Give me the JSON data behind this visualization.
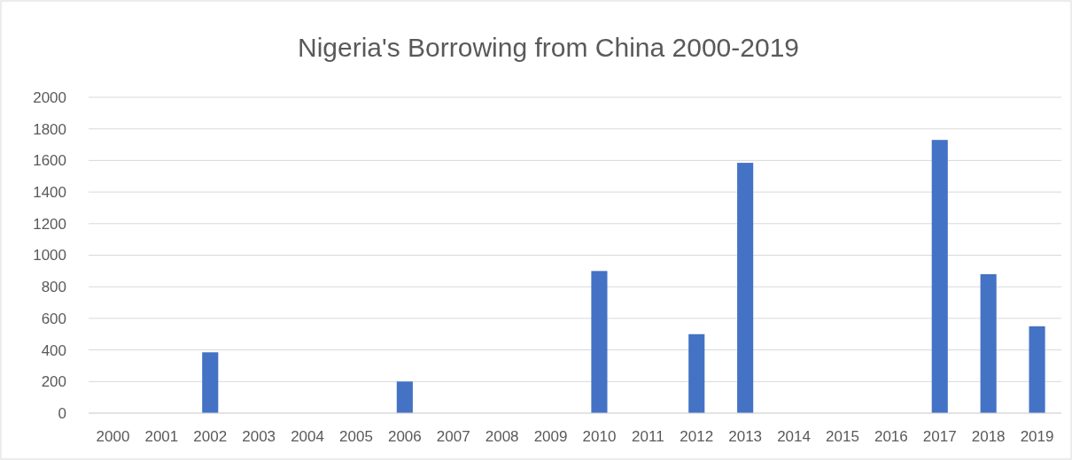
{
  "chart_data": {
    "type": "bar",
    "title": "Nigeria's Borrowing from China 2000-2019",
    "categories": [
      "2000",
      "2001",
      "2002",
      "2003",
      "2004",
      "2005",
      "2006",
      "2007",
      "2008",
      "2009",
      "2010",
      "2011",
      "2012",
      "2013",
      "2014",
      "2015",
      "2016",
      "2017",
      "2018",
      "2019"
    ],
    "values": [
      0,
      0,
      385,
      0,
      0,
      0,
      200,
      0,
      0,
      0,
      900,
      0,
      500,
      1585,
      0,
      0,
      0,
      1730,
      880,
      550
    ],
    "color": "#4472c4",
    "ylim": [
      0,
      2000
    ],
    "yticks": [
      0,
      200,
      400,
      600,
      800,
      1000,
      1200,
      1400,
      1600,
      1800,
      2000
    ],
    "grid": "y"
  }
}
